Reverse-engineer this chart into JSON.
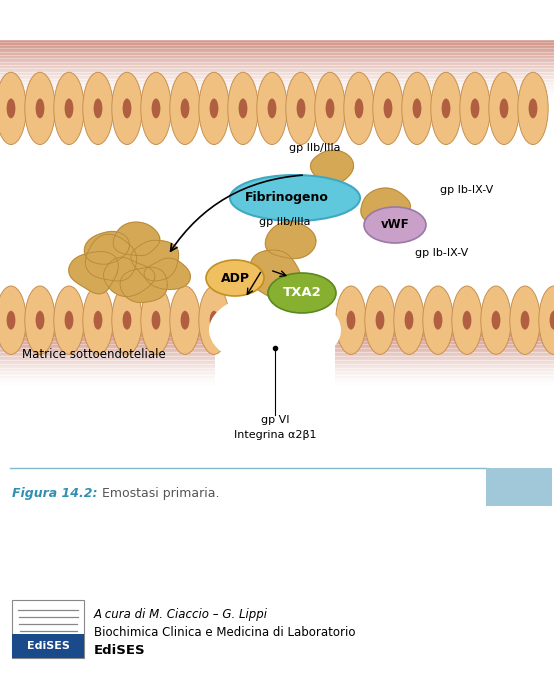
{
  "bg_color": "#ffffff",
  "fig_width": 5.54,
  "fig_height": 6.74,
  "dpi": 100,
  "labels": {
    "gp_IIb_IIIa_top": "gp IIb/IIIa",
    "gp_Ib_IX_V_top": "gp Ib-IX-V",
    "Fibrinogeno": "Fibrinogeno",
    "gp_IIb_IIIa_bottom": "gp IIb/IIIa",
    "vWF": "vWF",
    "gp_Ib_IX_V_bottom": "gp Ib-IX-V",
    "ADP": "ADP",
    "TXA2": "TXA2",
    "matrice": "Matrice sottoendoteliale",
    "gp_VI": "gp VI",
    "integrina": "Integrina α2β1"
  },
  "fibrinogeno_color": "#60c8dc",
  "vwf_color": "#c8a0c8",
  "adp_color": "#f0c060",
  "txa2_color": "#88b030",
  "platelet_color": "#d4a855",
  "platelet_border": "#b8883a",
  "figure_caption": "Figura 14.2:",
  "caption_text": " Emostasi primaria.",
  "caption_color": "#3090b0",
  "caption_text_color": "#555555",
  "separator_color": "#80b8cc",
  "corner_rect_color": "#a0c8d8",
  "publisher_text1": "A cura di M. Ciaccio – G. Lippi",
  "publisher_text2": "Biochimica Clinica e Medicina di Laboratorio",
  "publisher_text3": "EdiSES",
  "edises_bg": "#1a4a8a"
}
